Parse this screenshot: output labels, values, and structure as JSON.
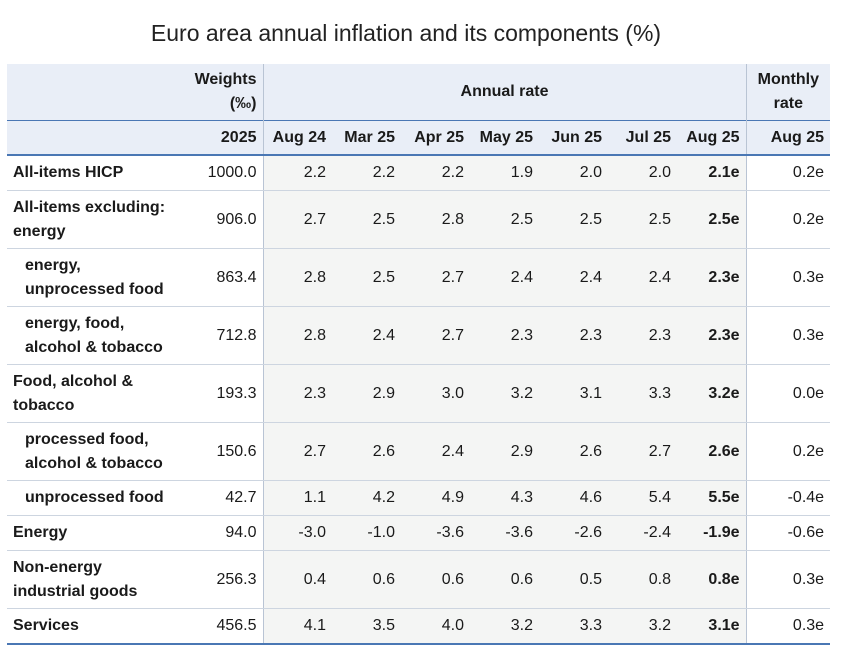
{
  "chart_data": {
    "type": "table",
    "title": "Euro area annual inflation and its components (%)",
    "header": {
      "weights_label": "Weights (‰)",
      "annual_rate_label": "Annual rate",
      "monthly_rate_label": "Monthly rate",
      "weights_year": "2025",
      "annual_columns": [
        "Aug 24",
        "Mar 25",
        "Apr 25",
        "May 25",
        "Jun 25",
        "Jul 25",
        "Aug 25"
      ],
      "monthly_column": "Aug 25"
    },
    "rows": [
      {
        "label": "All-items HICP",
        "weight": "1000.0",
        "annual": [
          "2.2",
          "2.2",
          "2.2",
          "1.9",
          "2.0",
          "2.0",
          "2.1e"
        ],
        "monthly": "0.2e"
      },
      {
        "label": "All-items excluding: energy",
        "weight": "906.0",
        "annual": [
          "2.7",
          "2.5",
          "2.8",
          "2.5",
          "2.5",
          "2.5",
          "2.5e"
        ],
        "monthly": "0.2e"
      },
      {
        "label": "energy, unprocessed food",
        "weight": "863.4",
        "annual": [
          "2.8",
          "2.5",
          "2.7",
          "2.4",
          "2.4",
          "2.4",
          "2.3e"
        ],
        "monthly": "0.3e"
      },
      {
        "label": "energy, food, alcohol & tobacco",
        "weight": "712.8",
        "annual": [
          "2.8",
          "2.4",
          "2.7",
          "2.3",
          "2.3",
          "2.3",
          "2.3e"
        ],
        "monthly": "0.3e"
      },
      {
        "label": "Food, alcohol & tobacco",
        "weight": "193.3",
        "annual": [
          "2.3",
          "2.9",
          "3.0",
          "3.2",
          "3.1",
          "3.3",
          "3.2e"
        ],
        "monthly": "0.0e"
      },
      {
        "label": "processed food, alcohol & tobacco",
        "weight": "150.6",
        "annual": [
          "2.7",
          "2.6",
          "2.4",
          "2.9",
          "2.6",
          "2.7",
          "2.6e"
        ],
        "monthly": "0.2e"
      },
      {
        "label": "unprocessed food",
        "weight": "42.7",
        "annual": [
          "1.1",
          "4.2",
          "4.9",
          "4.3",
          "4.6",
          "5.4",
          "5.5e"
        ],
        "monthly": "-0.4e"
      },
      {
        "label": "Energy",
        "weight": "94.0",
        "annual": [
          "-3.0",
          "-1.0",
          "-3.6",
          "-3.6",
          "-2.6",
          "-2.4",
          "-1.9e"
        ],
        "monthly": "-0.6e"
      },
      {
        "label": "Non-energy industrial goods",
        "weight": "256.3",
        "annual": [
          "0.4",
          "0.6",
          "0.6",
          "0.6",
          "0.5",
          "0.8",
          "0.8e"
        ],
        "monthly": "0.3e"
      },
      {
        "label": "Services",
        "weight": "456.5",
        "annual": [
          "4.1",
          "3.5",
          "4.0",
          "3.2",
          "3.3",
          "3.2",
          "3.1e"
        ],
        "monthly": "0.3e"
      }
    ]
  }
}
